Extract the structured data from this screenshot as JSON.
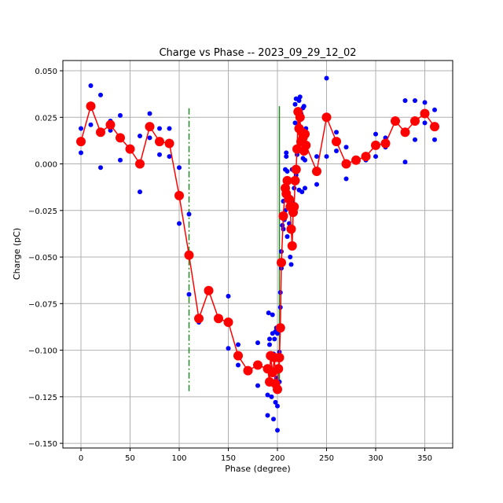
{
  "chart_data": {
    "type": "scatter",
    "title": "Charge vs Phase -- 2023_09_29_12_02",
    "xlabel": "Phase (degree)",
    "ylabel": "Charge (pC)",
    "xlim": [
      -18.4,
      378.4
    ],
    "ylim": [
      -0.1525,
      0.0555
    ],
    "grid": true,
    "xticks": [
      0,
      50,
      100,
      150,
      200,
      250,
      300,
      350
    ],
    "xtick_labels": [
      "0",
      "50",
      "100",
      "150",
      "200",
      "250",
      "300",
      "350"
    ],
    "yticks": [
      0.05,
      0.025,
      0,
      -0.025,
      -0.05,
      -0.075,
      -0.1,
      -0.125,
      -0.15
    ],
    "ytick_labels": [
      "0.050",
      "0.025",
      "0.000",
      "−0.025",
      "−0.050",
      "−0.075",
      "−0.100",
      "−0.125",
      "−0.150"
    ],
    "colors": {
      "raw": "#0000ff",
      "mean": "#ff0000",
      "marker_line": "#228b22"
    },
    "series": [
      {
        "name": "raw",
        "style": "blue-dots",
        "points": [
          [
            0,
            0.019
          ],
          [
            0,
            0.006
          ],
          [
            10,
            0.042
          ],
          [
            10,
            0.021
          ],
          [
            20,
            0.037
          ],
          [
            20,
            -0.002
          ],
          [
            30,
            0.023
          ],
          [
            30,
            0.018
          ],
          [
            40,
            0.026
          ],
          [
            40,
            0.002
          ],
          [
            60,
            0.015
          ],
          [
            60,
            -0.015
          ],
          [
            70,
            0.027
          ],
          [
            70,
            0.014
          ],
          [
            80,
            0.019
          ],
          [
            80,
            0.005
          ],
          [
            90,
            0.019
          ],
          [
            90,
            0.004
          ],
          [
            100,
            -0.002
          ],
          [
            100,
            -0.032
          ],
          [
            110,
            -0.027
          ],
          [
            110,
            -0.07
          ],
          [
            120,
            -0.085
          ],
          [
            150,
            -0.071
          ],
          [
            150,
            -0.099
          ],
          [
            160,
            -0.097
          ],
          [
            160,
            -0.108
          ],
          [
            180,
            -0.096
          ],
          [
            180,
            -0.119
          ],
          [
            190,
            -0.124
          ],
          [
            190,
            -0.135
          ],
          [
            191,
            -0.08
          ],
          [
            192,
            -0.094
          ],
          [
            192,
            -0.097
          ],
          [
            193,
            -0.117
          ],
          [
            194,
            -0.125
          ],
          [
            195,
            -0.081
          ],
          [
            195,
            -0.091
          ],
          [
            196,
            -0.102
          ],
          [
            196,
            -0.137
          ],
          [
            197,
            -0.094
          ],
          [
            197,
            -0.111
          ],
          [
            198,
            -0.09
          ],
          [
            198,
            -0.128
          ],
          [
            199,
            -0.088
          ],
          [
            199,
            -0.115
          ],
          [
            200,
            -0.091
          ],
          [
            200,
            -0.13
          ],
          [
            200,
            -0.143
          ],
          [
            201,
            -0.121
          ],
          [
            202,
            -0.101
          ],
          [
            202,
            -0.117
          ],
          [
            203,
            -0.069
          ],
          [
            203,
            -0.077
          ],
          [
            204,
            -0.047
          ],
          [
            204,
            -0.056
          ],
          [
            205,
            -0.033
          ],
          [
            206,
            -0.02
          ],
          [
            206,
            -0.035
          ],
          [
            207,
            -0.03
          ],
          [
            208,
            -0.003
          ],
          [
            208,
            -0.025
          ],
          [
            209,
            0.006
          ],
          [
            209,
            0.004
          ],
          [
            210,
            -0.004
          ],
          [
            210,
            -0.039
          ],
          [
            211,
            -0.016
          ],
          [
            212,
            -0.032
          ],
          [
            213,
            -0.05
          ],
          [
            214,
            -0.054
          ],
          [
            215,
            -0.02
          ],
          [
            215,
            -0.003
          ],
          [
            216,
            -0.003
          ],
          [
            217,
            -0.013
          ],
          [
            218,
            0.032
          ],
          [
            218,
            0.022
          ],
          [
            219,
            0.035
          ],
          [
            219,
            -0.006
          ],
          [
            220,
            0.027
          ],
          [
            220,
            0.005
          ],
          [
            221,
            0.021
          ],
          [
            222,
            0.034
          ],
          [
            222,
            -0.014
          ],
          [
            223,
            0.036
          ],
          [
            223,
            0.007
          ],
          [
            224,
            0.027
          ],
          [
            225,
            0.018
          ],
          [
            225,
            -0.015
          ],
          [
            226,
            0.03
          ],
          [
            226,
            0.003
          ],
          [
            227,
            0.031
          ],
          [
            227,
            0.012
          ],
          [
            228,
            0.002
          ],
          [
            228,
            -0.013
          ],
          [
            229,
            0.019
          ],
          [
            240,
            -0.011
          ],
          [
            240,
            0.004
          ],
          [
            250,
            0.046
          ],
          [
            250,
            0.004
          ],
          [
            260,
            0.017
          ],
          [
            260,
            0.007
          ],
          [
            270,
            0.009
          ],
          [
            270,
            -0.008
          ],
          [
            290,
            0.002
          ],
          [
            300,
            0.016
          ],
          [
            300,
            0.004
          ],
          [
            310,
            0.014
          ],
          [
            310,
            0.009
          ],
          [
            330,
            0.034
          ],
          [
            330,
            0.001
          ],
          [
            340,
            0.034
          ],
          [
            340,
            0.013
          ],
          [
            350,
            0.033
          ],
          [
            350,
            0.022
          ],
          [
            360,
            0.029
          ],
          [
            360,
            0.013
          ]
        ]
      },
      {
        "name": "mean",
        "style": "red-line-markers",
        "points": [
          [
            0,
            0.012
          ],
          [
            10,
            0.031
          ],
          [
            20,
            0.017
          ],
          [
            30,
            0.021
          ],
          [
            40,
            0.014
          ],
          [
            50,
            0.008
          ],
          [
            60,
            0.0
          ],
          [
            70,
            0.02
          ],
          [
            80,
            0.012
          ],
          [
            90,
            0.011
          ],
          [
            100,
            -0.017
          ],
          [
            110,
            -0.049
          ],
          [
            120,
            -0.083
          ],
          [
            130,
            -0.068
          ],
          [
            140,
            -0.083
          ],
          [
            150,
            -0.085
          ],
          [
            160,
            -0.103
          ],
          [
            170,
            -0.111
          ],
          [
            180,
            -0.108
          ],
          [
            190,
            -0.11
          ],
          [
            192,
            -0.117
          ],
          [
            193,
            -0.103
          ],
          [
            195,
            -0.112
          ],
          [
            197,
            -0.104
          ],
          [
            198,
            -0.118
          ],
          [
            200,
            -0.121
          ],
          [
            201,
            -0.11
          ],
          [
            202,
            -0.104
          ],
          [
            203,
            -0.088
          ],
          [
            204,
            -0.053
          ],
          [
            206,
            -0.028
          ],
          [
            208,
            -0.013
          ],
          [
            209,
            -0.016
          ],
          [
            210,
            -0.009
          ],
          [
            212,
            -0.019
          ],
          [
            213,
            -0.023
          ],
          [
            214,
            -0.035
          ],
          [
            215,
            -0.044
          ],
          [
            216,
            -0.026
          ],
          [
            217,
            -0.023
          ],
          [
            218,
            -0.009
          ],
          [
            219,
            -0.003
          ],
          [
            220,
            0.008
          ],
          [
            221,
            0.028
          ],
          [
            222,
            0.019
          ],
          [
            223,
            0.025
          ],
          [
            224,
            0.012
          ],
          [
            225,
            0.017
          ],
          [
            226,
            0.014
          ],
          [
            227,
            0.007
          ],
          [
            228,
            0.016
          ],
          [
            229,
            0.01
          ],
          [
            240,
            -0.004
          ],
          [
            250,
            0.025
          ],
          [
            260,
            0.012
          ],
          [
            270,
            0.0
          ],
          [
            280,
            0.002
          ],
          [
            290,
            0.004
          ],
          [
            300,
            0.01
          ],
          [
            310,
            0.011
          ],
          [
            320,
            0.023
          ],
          [
            330,
            0.017
          ],
          [
            340,
            0.023
          ],
          [
            350,
            0.027
          ],
          [
            360,
            0.02
          ]
        ]
      }
    ],
    "vlines": [
      {
        "x": 110,
        "y0": -0.122,
        "y1": 0.031,
        "style": "dashdot"
      },
      {
        "x": 202,
        "y0": -0.12,
        "y1": 0.031,
        "style": "solid"
      }
    ]
  }
}
